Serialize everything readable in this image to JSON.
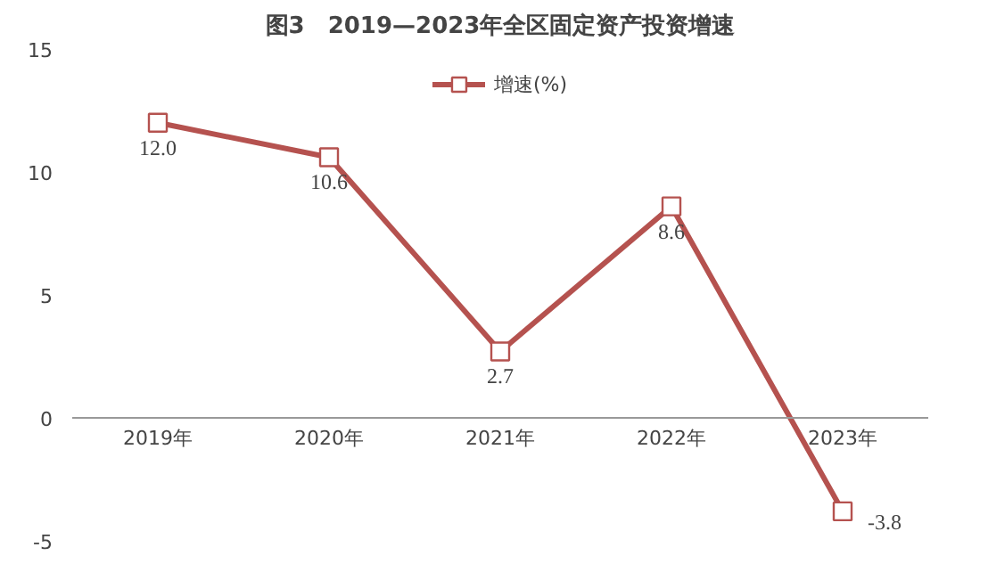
{
  "chart_data": {
    "type": "line",
    "title": "图3　2019—2023年全区固定资产投资增速",
    "categories": [
      "2019年",
      "2020年",
      "2021年",
      "2022年",
      "2023年"
    ],
    "series": [
      {
        "name": "增速(%)",
        "color": "#b5524f",
        "values": [
          12.0,
          10.6,
          2.7,
          8.6,
          -3.8
        ],
        "value_labels": [
          "12.0",
          "10.6",
          "2.7",
          "8.6",
          "-3.8"
        ]
      }
    ],
    "ylim": [
      -5,
      15
    ],
    "yticks": [
      -5,
      0,
      5,
      10,
      15
    ],
    "grid": false,
    "legend": "top",
    "marker": "square",
    "line_style": "solid"
  }
}
